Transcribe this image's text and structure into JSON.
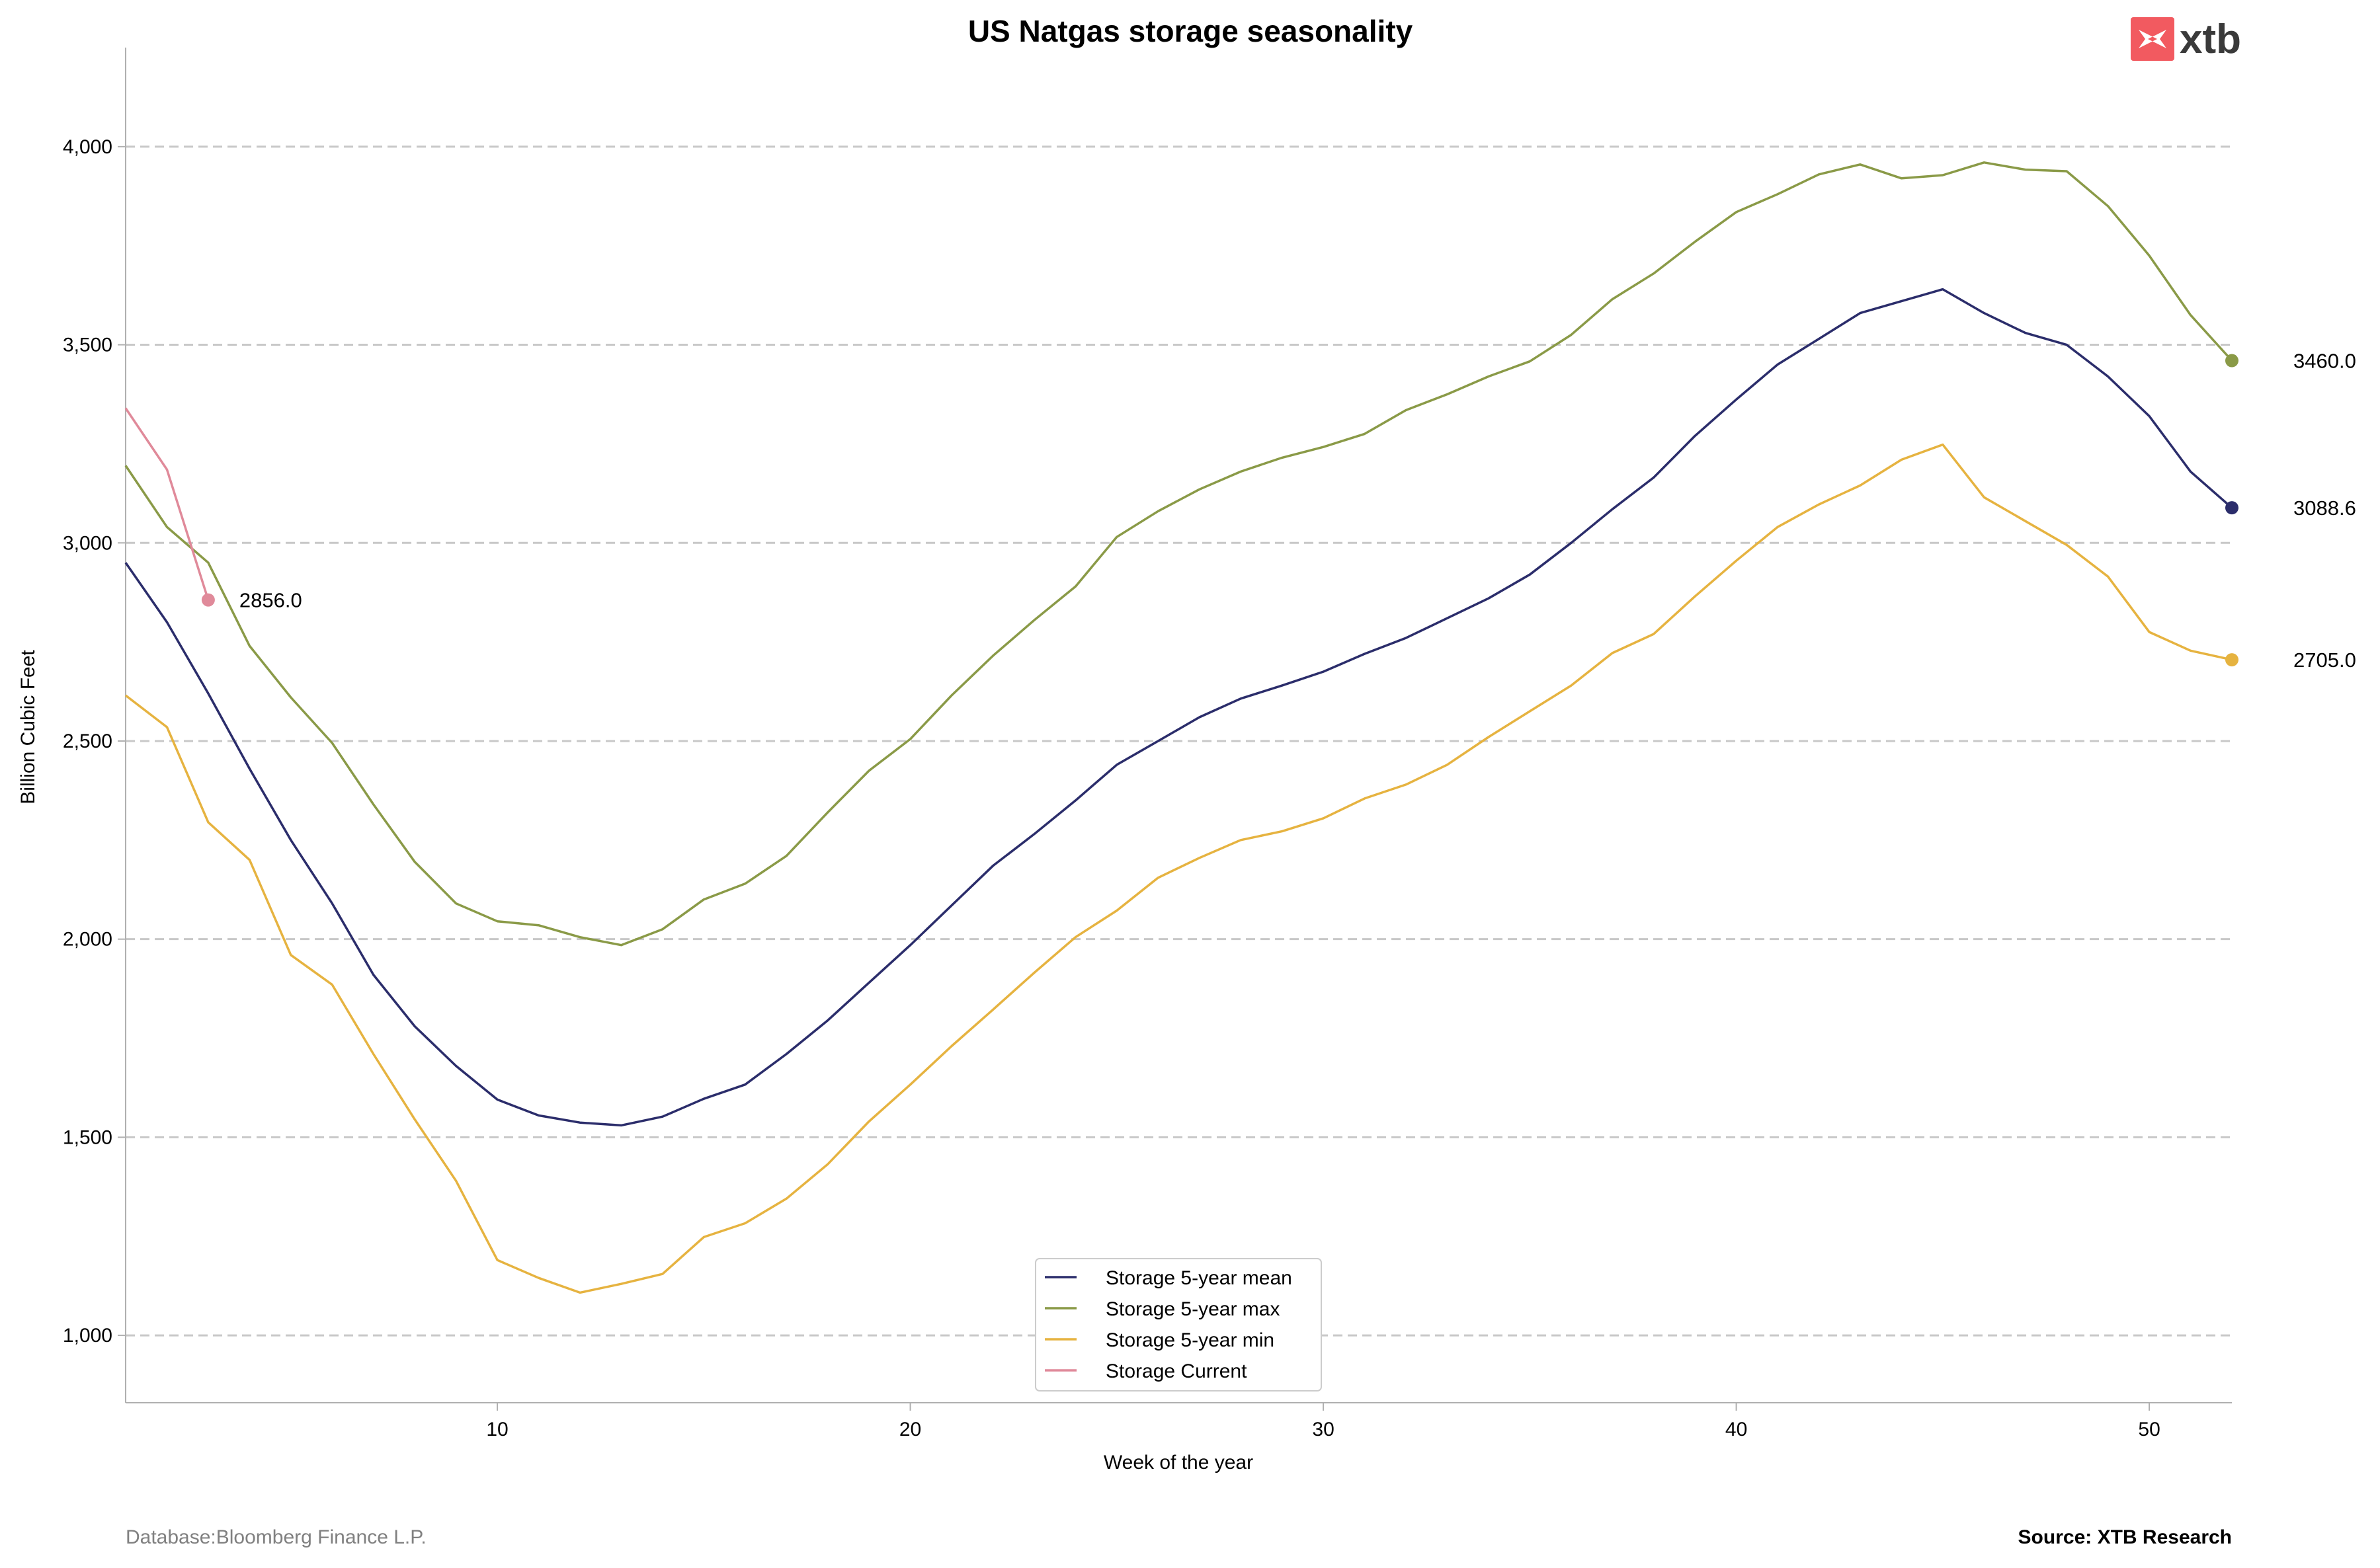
{
  "chart_data": {
    "type": "line",
    "title": "US Natgas storage seasonality",
    "xlabel": "Week of the year",
    "ylabel": "Billion Cubic Feet",
    "xlim": [
      1,
      52
    ],
    "ylim": [
      830,
      4250
    ],
    "xticks": [
      10,
      20,
      30,
      40,
      50
    ],
    "yticks": [
      1000,
      1500,
      2000,
      2500,
      3000,
      3500,
      4000
    ],
    "ytick_labels": [
      "1,000",
      "1,500",
      "2,000",
      "2,500",
      "3,000",
      "3,500",
      "4,000"
    ],
    "xtick_labels": [
      "10",
      "20",
      "30",
      "40",
      "50"
    ],
    "grid": "horizontal dashed",
    "legend_position": "bottom-center",
    "series": [
      {
        "name": "Storage 5-year mean",
        "color": "#2b2d6b",
        "end_label": "3088.6",
        "x": [
          1,
          2,
          3,
          4,
          5,
          6,
          7,
          8,
          9,
          10,
          11,
          12,
          13,
          14,
          15,
          16,
          17,
          18,
          19,
          20,
          21,
          22,
          23,
          24,
          25,
          26,
          27,
          28,
          29,
          30,
          31,
          32,
          33,
          34,
          35,
          36,
          37,
          38,
          39,
          40,
          41,
          42,
          43,
          44,
          45,
          46,
          47,
          48,
          49,
          50,
          51,
          52
        ],
        "values": [
          2950,
          2800,
          2620,
          2430,
          2250,
          2090,
          1910,
          1780,
          1680,
          1595,
          1555,
          1537,
          1530,
          1552,
          1597,
          1633,
          1710,
          1795,
          1890,
          1985,
          2085,
          2185,
          2265,
          2350,
          2440,
          2500,
          2560,
          2607,
          2640,
          2675,
          2720,
          2760,
          2810,
          2860,
          2920,
          3000,
          3085,
          3165,
          3270,
          3362,
          3450,
          3515,
          3580,
          3610,
          3640,
          3580,
          3530,
          3500,
          3420,
          3320,
          3180,
          3088.6
        ]
      },
      {
        "name": "Storage 5-year max",
        "color": "#8a9a47",
        "end_label": "3460.0",
        "x": [
          1,
          2,
          3,
          4,
          5,
          6,
          7,
          8,
          9,
          10,
          11,
          12,
          13,
          14,
          15,
          16,
          17,
          18,
          19,
          20,
          21,
          22,
          23,
          24,
          25,
          26,
          27,
          28,
          29,
          30,
          31,
          32,
          33,
          34,
          35,
          36,
          37,
          38,
          39,
          40,
          41,
          42,
          43,
          44,
          45,
          46,
          47,
          48,
          49,
          50,
          51,
          52
        ],
        "values": [
          3195,
          3040,
          2950,
          2740,
          2610,
          2495,
          2340,
          2195,
          2090,
          2045,
          2035,
          2005,
          1985,
          2025,
          2100,
          2140,
          2210,
          2320,
          2425,
          2505,
          2615,
          2715,
          2805,
          2890,
          3015,
          3080,
          3135,
          3180,
          3215,
          3242,
          3275,
          3335,
          3375,
          3420,
          3458,
          3525,
          3615,
          3680,
          3760,
          3835,
          3880,
          3930,
          3955,
          3920,
          3928,
          3960,
          3942,
          3938,
          3850,
          3725,
          3575,
          3460
        ]
      },
      {
        "name": "Storage 5-year min",
        "color": "#e6b340",
        "end_label": "2705.0",
        "x": [
          1,
          2,
          3,
          4,
          5,
          6,
          7,
          8,
          9,
          10,
          11,
          12,
          13,
          14,
          15,
          16,
          17,
          18,
          19,
          20,
          21,
          22,
          23,
          24,
          25,
          26,
          27,
          28,
          29,
          30,
          31,
          32,
          33,
          34,
          35,
          36,
          37,
          38,
          39,
          40,
          41,
          42,
          43,
          44,
          45,
          46,
          47,
          48,
          49,
          50,
          51,
          52
        ],
        "values": [
          2615,
          2535,
          2295,
          2200,
          1960,
          1885,
          1710,
          1545,
          1390,
          1190,
          1145,
          1108,
          1130,
          1155,
          1248,
          1283,
          1345,
          1432,
          1540,
          1633,
          1730,
          1822,
          1915,
          2005,
          2072,
          2155,
          2205,
          2250,
          2272,
          2305,
          2355,
          2390,
          2440,
          2510,
          2575,
          2640,
          2722,
          2770,
          2865,
          2955,
          3040,
          3097,
          3145,
          3210,
          3248,
          3115,
          3055,
          2995,
          2915,
          2775,
          2728,
          2705
        ]
      },
      {
        "name": "Storage Current",
        "color": "#e08a9a",
        "end_label": "2856.0",
        "x": [
          1,
          2,
          3
        ],
        "values": [
          3340,
          3185,
          2856
        ]
      }
    ]
  },
  "footer": {
    "source_left": "Database:Bloomberg Finance L.P.",
    "source_right": "Source: XTB Research"
  },
  "logo": {
    "text": "xtb",
    "mark_color": "#f25a60"
  }
}
